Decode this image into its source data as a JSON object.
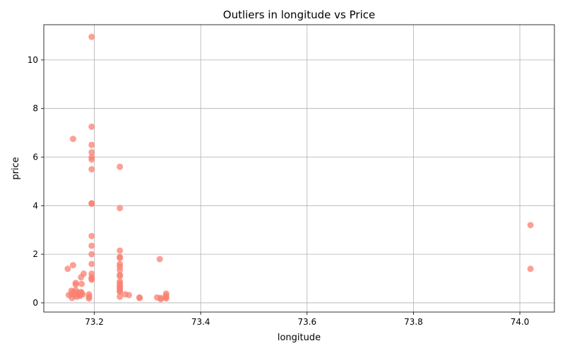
{
  "chart_data": {
    "type": "scatter",
    "title": "Outliers in longitude vs Price",
    "xlabel": "longitude",
    "ylabel": "price",
    "xlim": [
      73.105,
      74.065
    ],
    "ylim": [
      -0.38,
      11.45
    ],
    "xticks": [
      73.2,
      73.4,
      73.6,
      73.8,
      74.0
    ],
    "xtick_labels": [
      "73.2",
      "73.4",
      "73.6",
      "73.8",
      "74.0"
    ],
    "yticks": [
      0,
      2,
      4,
      6,
      8,
      10
    ],
    "ytick_labels": [
      "0",
      "2",
      "4",
      "6",
      "8",
      "10"
    ],
    "grid": true,
    "marker_color": "#fa8072",
    "series": [
      {
        "points": [
          [
            73.195,
            10.95
          ],
          [
            73.195,
            7.25
          ],
          [
            73.16,
            6.75
          ],
          [
            73.195,
            6.5
          ],
          [
            73.195,
            6.2
          ],
          [
            73.195,
            6.0
          ],
          [
            73.195,
            5.9
          ],
          [
            73.195,
            5.5
          ],
          [
            73.195,
            4.1
          ],
          [
            73.195,
            4.08
          ],
          [
            73.195,
            2.75
          ],
          [
            73.195,
            2.35
          ],
          [
            73.195,
            2.0
          ],
          [
            73.195,
            1.6
          ],
          [
            73.195,
            1.2
          ],
          [
            73.195,
            1.05
          ],
          [
            73.195,
            1.0
          ],
          [
            73.195,
            0.95
          ],
          [
            73.248,
            5.6
          ],
          [
            73.248,
            3.9
          ],
          [
            73.248,
            2.15
          ],
          [
            73.248,
            1.88
          ],
          [
            73.248,
            1.85
          ],
          [
            73.248,
            1.6
          ],
          [
            73.248,
            1.5
          ],
          [
            73.248,
            1.35
          ],
          [
            73.248,
            1.15
          ],
          [
            73.248,
            1.1
          ],
          [
            73.248,
            0.88
          ],
          [
            73.248,
            0.8
          ],
          [
            73.248,
            0.72
          ],
          [
            73.248,
            0.65
          ],
          [
            73.248,
            0.58
          ],
          [
            73.248,
            0.5
          ],
          [
            73.248,
            0.45
          ],
          [
            73.248,
            0.25
          ],
          [
            73.15,
            1.4
          ],
          [
            73.16,
            1.55
          ],
          [
            73.18,
            1.2
          ],
          [
            73.175,
            1.05
          ],
          [
            73.176,
            0.78
          ],
          [
            73.165,
            0.82
          ],
          [
            73.165,
            0.75
          ],
          [
            73.152,
            0.32
          ],
          [
            73.157,
            0.5
          ],
          [
            73.157,
            0.35
          ],
          [
            73.158,
            0.2
          ],
          [
            73.161,
            0.45
          ],
          [
            73.163,
            0.3
          ],
          [
            73.165,
            0.52
          ],
          [
            73.167,
            0.25
          ],
          [
            73.168,
            0.42
          ],
          [
            73.17,
            0.38
          ],
          [
            73.172,
            0.33
          ],
          [
            73.173,
            0.28
          ],
          [
            73.175,
            0.45
          ],
          [
            73.176,
            0.4
          ],
          [
            73.178,
            0.35
          ],
          [
            73.19,
            0.35
          ],
          [
            73.19,
            0.25
          ],
          [
            73.19,
            0.18
          ],
          [
            73.258,
            0.35
          ],
          [
            73.265,
            0.32
          ],
          [
            73.285,
            0.22
          ],
          [
            73.285,
            0.2
          ],
          [
            73.318,
            0.22
          ],
          [
            73.323,
            1.8
          ],
          [
            73.325,
            0.2
          ],
          [
            73.325,
            0.15
          ],
          [
            73.335,
            0.38
          ],
          [
            73.335,
            0.3
          ],
          [
            73.335,
            0.22
          ],
          [
            73.335,
            0.18
          ],
          [
            74.02,
            3.2
          ],
          [
            74.02,
            1.4
          ]
        ]
      }
    ]
  }
}
